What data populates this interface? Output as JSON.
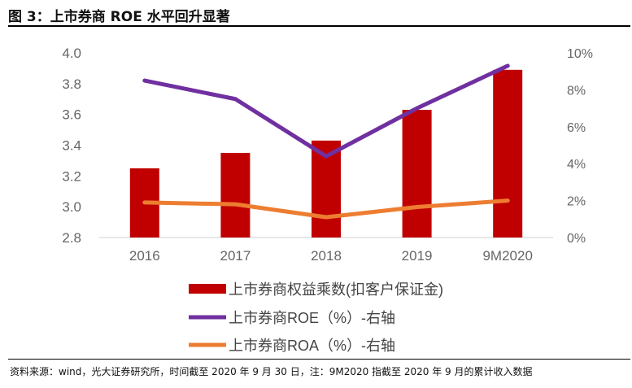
{
  "title": "图 3：上市券商 ROE 水平回升显著",
  "source": "资料来源：wind，光大证券研究所，时间截至 2020 年 9 月 30 日，注：9M2020 指截至 2020 年 9 月的累计收入数据",
  "chart_data": {
    "type": "bar+line",
    "categories": [
      "2016",
      "2017",
      "2018",
      "2019",
      "9M2020"
    ],
    "left_axis": {
      "ylim": [
        2.8,
        4.0
      ],
      "ticks": [
        "2.8",
        "3.0",
        "3.2",
        "3.4",
        "3.6",
        "3.8",
        "4.0"
      ]
    },
    "right_axis": {
      "ylim": [
        0,
        10
      ],
      "unit": "%",
      "ticks": [
        "0%",
        "2%",
        "4%",
        "6%",
        "8%",
        "10%"
      ]
    },
    "grid": false,
    "legend_position": "bottom",
    "series": [
      {
        "name": "上市券商权益乘数(扣客户保证金)",
        "type": "bar",
        "axis": "left",
        "color": "#C00000",
        "values": [
          3.25,
          3.35,
          3.43,
          3.63,
          3.89
        ]
      },
      {
        "name": "上市券商ROE（%）-右轴",
        "type": "line",
        "axis": "right",
        "color": "#7030A0",
        "values": [
          8.5,
          7.5,
          4.4,
          7.0,
          9.3
        ]
      },
      {
        "name": "上市券商ROA（%）-右轴",
        "type": "line",
        "axis": "right",
        "color": "#ED7D31",
        "values": [
          1.9,
          1.8,
          1.1,
          1.65,
          2.0
        ]
      }
    ]
  }
}
